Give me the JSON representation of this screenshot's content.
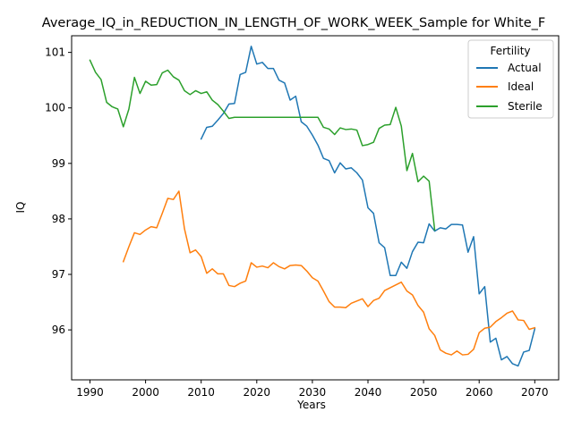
{
  "chart_data": {
    "type": "line",
    "title": "Average_IQ_in_REDUCTION_IN_LENGTH_OF_WORK_WEEK_Sample for White_F",
    "xlabel": "Years",
    "ylabel": "IQ",
    "xlim": [
      1986.7,
      2074.3
    ],
    "ylim": [
      95.1,
      101.3
    ],
    "xticks": [
      1990,
      2000,
      2010,
      2020,
      2030,
      2040,
      2050,
      2060,
      2070
    ],
    "yticks": [
      96,
      97,
      98,
      99,
      100,
      101
    ],
    "grid": false,
    "legend": {
      "title": "Fertility",
      "placement": "top-right"
    },
    "series": [
      {
        "name": "Actual",
        "color": "#1f77b4",
        "x": [
          2010,
          2011,
          2012,
          2013,
          2014,
          2015,
          2016,
          2017,
          2018,
          2019,
          2020,
          2021,
          2022,
          2023,
          2024,
          2025,
          2026,
          2027,
          2028,
          2029,
          2030,
          2031,
          2032,
          2033,
          2034,
          2035,
          2036,
          2037,
          2038,
          2039,
          2040,
          2041,
          2042,
          2043,
          2044,
          2045,
          2046,
          2047,
          2048,
          2049,
          2050,
          2051,
          2052,
          2053,
          2054,
          2055,
          2056,
          2057,
          2058,
          2059,
          2060,
          2061,
          2062,
          2063,
          2064,
          2065,
          2066,
          2067,
          2068,
          2069,
          2070
        ],
        "values": [
          99.44,
          99.65,
          99.67,
          99.78,
          99.9,
          100.07,
          100.08,
          100.6,
          100.64,
          101.11,
          100.79,
          100.82,
          100.71,
          100.71,
          100.5,
          100.45,
          100.14,
          100.21,
          99.75,
          99.67,
          99.51,
          99.33,
          99.09,
          99.05,
          98.83,
          99.01,
          98.9,
          98.92,
          98.83,
          98.7,
          98.2,
          98.1,
          97.57,
          97.48,
          96.98,
          96.98,
          97.22,
          97.11,
          97.41,
          97.58,
          97.57,
          97.91,
          97.78,
          97.84,
          97.82,
          97.9,
          97.9,
          97.89,
          97.4,
          97.68,
          96.65,
          96.78,
          95.78,
          95.85,
          95.46,
          95.52,
          95.39,
          95.35,
          95.6,
          95.63,
          96.02
        ]
      },
      {
        "name": "Ideal",
        "color": "#ff7f0e",
        "x": [
          1996,
          1997,
          1998,
          1999,
          2000,
          2001,
          2002,
          2003,
          2004,
          2005,
          2006,
          2007,
          2008,
          2009,
          2010,
          2011,
          2012,
          2013,
          2014,
          2015,
          2016,
          2017,
          2018,
          2019,
          2020,
          2021,
          2022,
          2023,
          2024,
          2025,
          2026,
          2027,
          2028,
          2029,
          2030,
          2031,
          2032,
          2033,
          2034,
          2035,
          2036,
          2037,
          2038,
          2039,
          2040,
          2041,
          2042,
          2043,
          2044,
          2045,
          2046,
          2047,
          2048,
          2049,
          2050,
          2051,
          2052,
          2053,
          2054,
          2055,
          2056,
          2057,
          2058,
          2059,
          2060,
          2061,
          2062,
          2063,
          2064,
          2065,
          2066,
          2067,
          2068,
          2069,
          2070
        ],
        "values": [
          97.23,
          97.5,
          97.75,
          97.72,
          97.8,
          97.86,
          97.84,
          98.1,
          98.37,
          98.35,
          98.5,
          97.82,
          97.39,
          97.44,
          97.32,
          97.02,
          97.1,
          97.01,
          97.01,
          96.8,
          96.78,
          96.84,
          96.88,
          97.21,
          97.13,
          97.15,
          97.12,
          97.21,
          97.14,
          97.1,
          97.16,
          97.17,
          97.16,
          97.06,
          96.94,
          96.88,
          96.7,
          96.51,
          96.41,
          96.41,
          96.4,
          96.48,
          96.52,
          96.56,
          96.42,
          96.53,
          96.57,
          96.71,
          96.76,
          96.81,
          96.86,
          96.7,
          96.63,
          96.44,
          96.32,
          96.02,
          95.9,
          95.64,
          95.58,
          95.55,
          95.62,
          95.55,
          95.56,
          95.65,
          95.95,
          96.03,
          96.05,
          96.15,
          96.22,
          96.3,
          96.34,
          96.18,
          96.17,
          96.01,
          96.04
        ]
      },
      {
        "name": "Sterile",
        "color": "#2ca02c",
        "x": [
          1990,
          1991,
          1992,
          1993,
          1994,
          1995,
          1996,
          1997,
          1998,
          1999,
          2000,
          2001,
          2002,
          2003,
          2004,
          2005,
          2006,
          2007,
          2008,
          2009,
          2010,
          2011,
          2012,
          2013,
          2014,
          2015,
          2016,
          2017,
          2018,
          2019,
          2020,
          2021,
          2022,
          2023,
          2024,
          2025,
          2026,
          2027,
          2028,
          2029,
          2030,
          2031,
          2032,
          2033,
          2034,
          2035,
          2036,
          2037,
          2038,
          2039,
          2040,
          2041,
          2042,
          2043,
          2044,
          2045,
          2046,
          2047,
          2048,
          2049,
          2050,
          2051,
          2052
        ],
        "values": [
          100.86,
          100.64,
          100.51,
          100.1,
          100.02,
          99.98,
          99.66,
          99.98,
          100.55,
          100.26,
          100.48,
          100.41,
          100.42,
          100.63,
          100.68,
          100.56,
          100.5,
          100.31,
          100.24,
          100.31,
          100.26,
          100.29,
          100.14,
          100.06,
          99.94,
          99.81,
          99.83,
          99.83,
          99.83,
          99.83,
          99.83,
          99.83,
          99.83,
          99.83,
          99.83,
          99.83,
          99.83,
          99.83,
          99.83,
          99.83,
          99.83,
          99.83,
          99.65,
          99.62,
          99.52,
          99.64,
          99.61,
          99.62,
          99.6,
          99.32,
          99.34,
          99.38,
          99.63,
          99.69,
          99.7,
          100.01,
          99.67,
          98.87,
          99.18,
          98.67,
          98.77,
          98.68,
          97.8
        ]
      }
    ]
  }
}
